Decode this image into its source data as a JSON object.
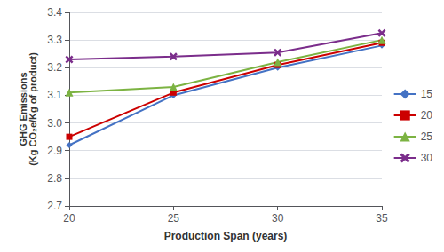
{
  "chart_data": {
    "type": "line",
    "xlabel": "Production Span (years)",
    "ylabel": "GHG Emissions\n(Kg CO₂e/Kg of product)",
    "x": [
      20,
      25,
      30,
      35
    ],
    "series": [
      {
        "name": "15",
        "color": "#4472C4",
        "marker": "diamond",
        "values": [
          2.92,
          3.1,
          3.2,
          3.28
        ]
      },
      {
        "name": "20",
        "color": "#CC0000",
        "marker": "square",
        "values": [
          2.95,
          3.11,
          3.21,
          3.29
        ]
      },
      {
        "name": "25",
        "color": "#7CB342",
        "marker": "triangle",
        "values": [
          3.11,
          3.13,
          3.22,
          3.3
        ]
      },
      {
        "name": "30",
        "color": "#7B2D8B",
        "marker": "x",
        "values": [
          3.23,
          3.24,
          3.255,
          3.325
        ]
      }
    ],
    "xlim": [
      20,
      35
    ],
    "xticks": [
      20,
      25,
      30,
      35
    ],
    "ylim": [
      2.7,
      3.4
    ],
    "yticks": [
      2.7,
      2.8,
      2.9,
      {
        "value": 3,
        "label": "3.0"
      },
      3.1,
      3.2,
      3.3,
      3.4
    ],
    "grid": true,
    "legend": "right"
  }
}
